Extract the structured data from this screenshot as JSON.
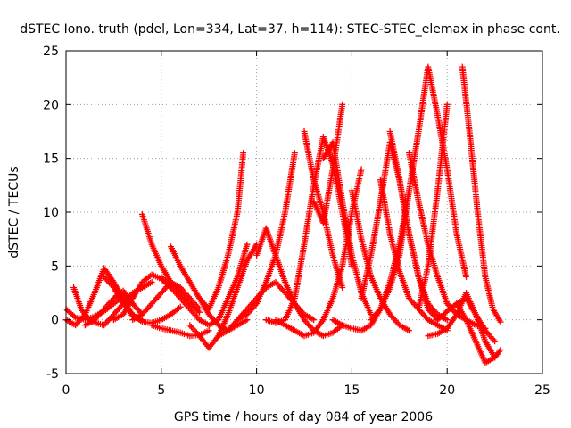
{
  "chart_data": {
    "type": "scatter",
    "title": "dSTEC Iono. truth (pdel, Lon=334, Lat=37, h=114): STEC-STEC_elemax in phase cont.",
    "xlabel": "GPS time / hours of day 084 of year 2006",
    "ylabel": "dSTEC  / TECUs",
    "xlim": [
      0,
      25
    ],
    "ylim": [
      -5,
      25
    ],
    "xticks": [
      0,
      5,
      10,
      15,
      20,
      25
    ],
    "yticks": [
      -5,
      0,
      5,
      10,
      15,
      20,
      25
    ],
    "grid": true,
    "marker": "+",
    "color": "#ff0000",
    "series": [
      {
        "x": [
          0.0,
          0.5,
          1.0,
          1.5,
          2.0,
          2.5,
          3.0,
          3.5,
          4.0
        ],
        "y": [
          0.0,
          -0.5,
          0.5,
          2.5,
          4.8,
          3.5,
          2.0,
          0.3,
          0.0
        ]
      },
      {
        "x": [
          0.0,
          0.5,
          1.0,
          1.5,
          2.0,
          2.5,
          3.0
        ],
        "y": [
          1.0,
          0.2,
          0.0,
          0.3,
          0.8,
          1.5,
          2.2
        ]
      },
      {
        "x": [
          0.4,
          0.8,
          1.2,
          1.6,
          2.0,
          2.5,
          3.0,
          3.5,
          4.0,
          4.5
        ],
        "y": [
          3.0,
          1.0,
          0.0,
          -0.3,
          -0.5,
          0.5,
          1.5,
          2.5,
          3.0,
          3.5
        ]
      },
      {
        "x": [
          1.0,
          1.5,
          2.0,
          2.5,
          3.0,
          3.5,
          4.0
        ],
        "y": [
          -0.5,
          0.0,
          1.0,
          2.0,
          2.7,
          1.5,
          0.5
        ]
      },
      {
        "x": [
          2.0,
          2.5,
          3.0,
          3.5,
          4.0,
          4.5,
          5.0,
          5.5,
          6.0
        ],
        "y": [
          4.0,
          3.0,
          1.5,
          0.5,
          -0.2,
          -0.3,
          0.0,
          0.5,
          1.2
        ]
      },
      {
        "x": [
          2.5,
          3.0,
          3.5,
          4.0,
          4.5,
          5.0,
          5.5
        ],
        "y": [
          0.0,
          0.5,
          2.0,
          3.5,
          4.2,
          3.8,
          3.0
        ]
      },
      {
        "x": [
          4.0,
          4.5,
          5.0,
          5.5,
          6.0,
          6.5,
          7.0
        ],
        "y": [
          9.8,
          7.0,
          5.0,
          3.5,
          2.5,
          1.5,
          0.7
        ]
      },
      {
        "x": [
          3.5,
          4.0,
          4.5,
          5.0,
          5.5,
          6.0,
          6.5,
          7.0
        ],
        "y": [
          0.0,
          0.5,
          1.5,
          2.5,
          3.5,
          3.0,
          2.0,
          1.0
        ]
      },
      {
        "x": [
          5.0,
          5.5,
          6.0,
          6.5,
          7.0,
          7.5,
          8.0,
          8.5,
          9.0,
          9.5
        ],
        "y": [
          4.0,
          3.0,
          2.0,
          1.0,
          0.0,
          -0.5,
          0.0,
          2.0,
          4.0,
          7.0
        ]
      },
      {
        "x": [
          5.5,
          6.0,
          6.5,
          7.0,
          7.5,
          8.0,
          8.5,
          9.0,
          9.5
        ],
        "y": [
          6.8,
          5.0,
          3.5,
          2.0,
          0.5,
          -0.5,
          -1.0,
          -0.5,
          0.0
        ]
      },
      {
        "x": [
          4.5,
          5.0,
          5.5,
          6.0,
          6.5,
          7.0,
          7.5
        ],
        "y": [
          -0.5,
          -0.8,
          -1.0,
          -1.2,
          -1.5,
          -1.4,
          -1.0
        ]
      },
      {
        "x": [
          6.5,
          7.0,
          7.5,
          8.0,
          8.5,
          9.0,
          9.5,
          10.0
        ],
        "y": [
          -0.5,
          -1.5,
          -2.6,
          -1.5,
          0.5,
          3.0,
          5.5,
          7.0
        ]
      },
      {
        "x": [
          7.0,
          7.5,
          8.0,
          8.5,
          9.0,
          9.3
        ],
        "y": [
          2.0,
          1.0,
          3.0,
          6.0,
          10.0,
          15.5
        ]
      },
      {
        "x": [
          8.0,
          8.5,
          9.0,
          9.5,
          10.0,
          10.5,
          11.0,
          11.5,
          12.0,
          12.5,
          13.0
        ],
        "y": [
          -1.5,
          -1.0,
          0.0,
          1.0,
          2.0,
          3.0,
          3.5,
          2.5,
          1.5,
          0.5,
          0.0
        ]
      },
      {
        "x": [
          9.0,
          9.5,
          10.0,
          10.5,
          11.0,
          11.5,
          12.0
        ],
        "y": [
          0.0,
          0.5,
          1.5,
          3.5,
          6.0,
          10.0,
          15.5
        ]
      },
      {
        "x": [
          10.0,
          10.5,
          11.0,
          11.5,
          12.0,
          12.5,
          13.0,
          13.5,
          14.0,
          14.5
        ],
        "y": [
          6.0,
          8.5,
          6.0,
          3.5,
          1.5,
          0.0,
          -1.0,
          -1.5,
          -1.2,
          -0.5
        ]
      },
      {
        "x": [
          10.5,
          11.0,
          11.5,
          12.0,
          12.5,
          13.0,
          13.5,
          14.0,
          14.5,
          15.0
        ],
        "y": [
          0.0,
          -0.3,
          0.0,
          2.0,
          7.0,
          12.5,
          17.0,
          14.5,
          10.0,
          5.0
        ]
      },
      {
        "x": [
          11.0,
          11.5,
          12.0,
          12.5,
          13.0,
          13.5,
          14.0,
          14.5,
          15.0,
          15.5
        ],
        "y": [
          0.0,
          -0.5,
          -1.0,
          -1.5,
          -1.2,
          0.0,
          2.0,
          5.0,
          10.0,
          14.0
        ]
      },
      {
        "x": [
          12.5,
          13.0,
          13.5,
          14.0,
          14.5
        ],
        "y": [
          17.5,
          13.0,
          10.0,
          6.0,
          3.0
        ]
      },
      {
        "x": [
          13.0,
          13.5,
          14.0,
          14.5
        ],
        "y": [
          11.0,
          9.0,
          14.0,
          20.0
        ]
      },
      {
        "x": [
          13.5,
          14.0,
          14.5,
          15.0,
          15.5,
          16.0
        ],
        "y": [
          15.0,
          16.5,
          11.0,
          6.0,
          2.5,
          0.5
        ]
      },
      {
        "x": [
          14.0,
          14.5,
          15.0,
          15.5,
          16.0,
          16.5,
          17.0,
          17.5,
          18.0
        ],
        "y": [
          0.0,
          -0.5,
          -0.8,
          -1.0,
          -0.5,
          1.0,
          3.5,
          7.0,
          12.0
        ]
      },
      {
        "x": [
          15.0,
          15.5,
          16.0,
          16.5,
          17.0,
          17.5,
          18.0
        ],
        "y": [
          12.0,
          7.5,
          4.0,
          2.0,
          0.5,
          -0.5,
          -1.0
        ]
      },
      {
        "x": [
          15.5,
          16.0,
          16.5,
          17.0,
          17.5,
          18.0,
          18.5,
          19.0,
          19.5
        ],
        "y": [
          2.0,
          6.0,
          11.0,
          16.5,
          13.0,
          8.0,
          4.0,
          1.0,
          0.0
        ]
      },
      {
        "x": [
          16.5,
          17.0,
          17.5,
          18.0,
          18.5,
          19.0,
          19.5,
          20.0
        ],
        "y": [
          13.0,
          8.0,
          4.5,
          2.0,
          1.0,
          0.0,
          -0.5,
          -1.0
        ]
      },
      {
        "x": [
          16.0,
          16.5,
          17.0,
          17.5,
          18.0,
          18.5,
          19.0,
          19.5,
          20.0,
          20.5,
          21.0
        ],
        "y": [
          0.0,
          1.0,
          3.0,
          6.0,
          12.0,
          17.5,
          23.5,
          19.0,
          14.0,
          8.0,
          4.0
        ]
      },
      {
        "x": [
          17.0,
          17.5,
          18.0,
          18.5,
          19.0,
          19.5,
          20.0
        ],
        "y": [
          17.5,
          13.0,
          8.0,
          4.0,
          1.5,
          0.5,
          0.0
        ]
      },
      {
        "x": [
          18.0,
          18.5,
          19.0,
          19.5,
          20.0,
          20.5,
          21.0,
          21.5,
          22.0
        ],
        "y": [
          15.5,
          11.0,
          7.0,
          4.0,
          1.5,
          0.5,
          0.0,
          -0.5,
          -0.8
        ]
      },
      {
        "x": [
          18.5,
          19.0,
          19.5,
          20.0
        ],
        "y": [
          1.0,
          5.0,
          12.0,
          20.0
        ]
      },
      {
        "x": [
          19.0,
          19.5,
          20.0,
          20.5,
          21.0,
          21.5,
          22.0,
          22.5
        ],
        "y": [
          -1.5,
          -1.3,
          -0.8,
          0.5,
          2.5,
          0.5,
          -2.0,
          -3.5
        ]
      },
      {
        "x": [
          20.8,
          21.2,
          21.6,
          22.0,
          22.4,
          22.8
        ],
        "y": [
          23.5,
          17.0,
          10.0,
          4.0,
          1.0,
          -0.2
        ]
      },
      {
        "x": [
          20.5,
          21.0,
          21.5,
          22.0,
          22.5,
          22.8
        ],
        "y": [
          1.5,
          0.0,
          -2.0,
          -4.0,
          -3.5,
          -2.8
        ]
      },
      {
        "x": [
          19.5,
          20.0,
          20.5,
          21.0,
          21.5,
          22.0,
          22.5
        ],
        "y": [
          0.0,
          0.8,
          1.5,
          2.0,
          0.5,
          -1.0,
          -2.0
        ]
      }
    ]
  }
}
